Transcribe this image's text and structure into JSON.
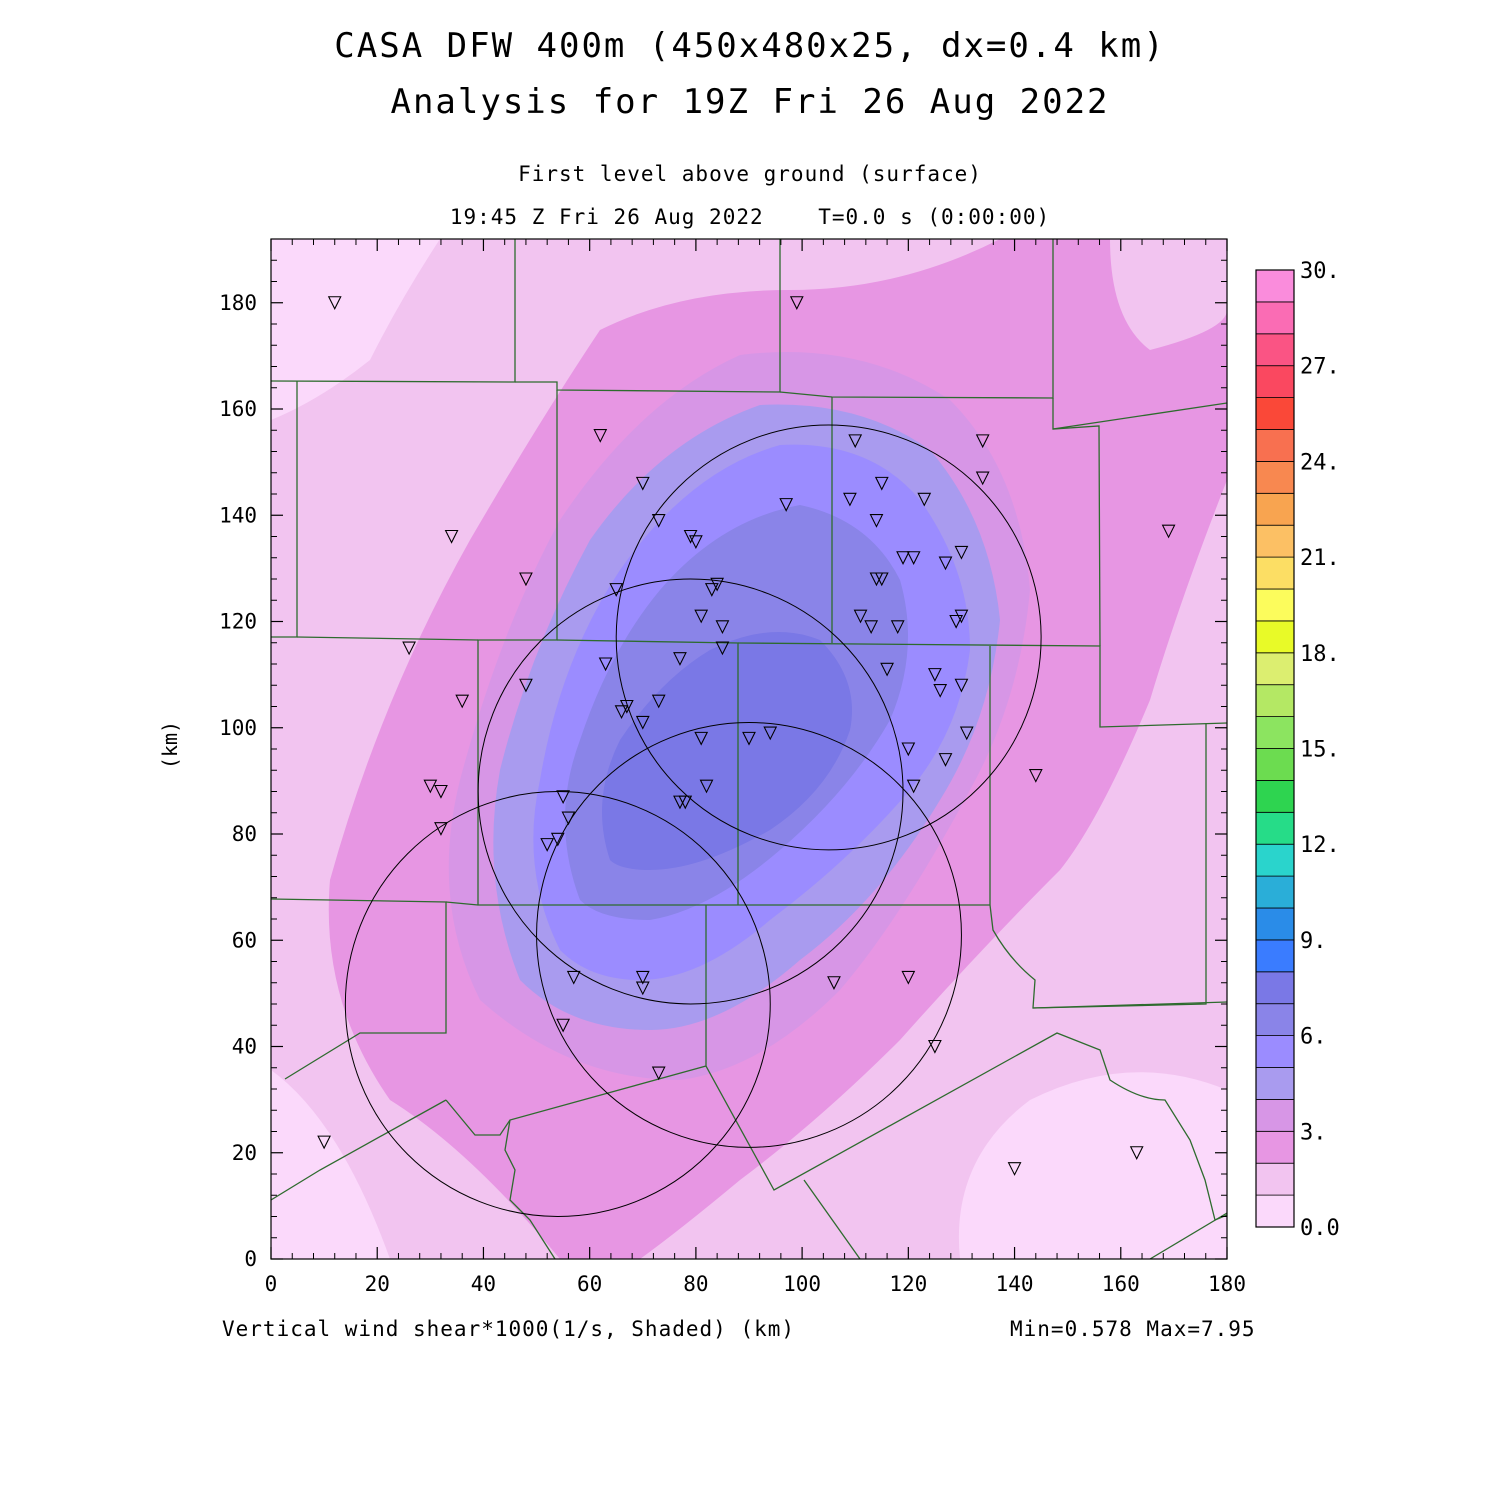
{
  "header": {
    "title_line1": "CASA DFW 400m (450x480x25, dx=0.4 km)",
    "title_line2": "Analysis for 19Z Fri 26 Aug 2022",
    "level": "First level above ground (surface)",
    "time": "19:45 Z Fri 26 Aug 2022    T=0.0 s (0:00:00)"
  },
  "footer": {
    "field_label": "Vertical wind shear*1000(1/s, Shaded)",
    "units": "(km)",
    "minmax": "Min=0.578 Max=7.95"
  },
  "axes": {
    "x_ticks": [
      "0",
      "20",
      "40",
      "60",
      "80",
      "100",
      "120",
      "140",
      "160",
      "180"
    ],
    "y_ticks": [
      "0",
      "20",
      "40",
      "60",
      "80",
      "100",
      "120",
      "140",
      "160",
      "180"
    ],
    "y_label": "(km)",
    "x_range": [
      0,
      180
    ],
    "y_range": [
      0,
      192
    ]
  },
  "colorbar": {
    "labels": [
      "0.0",
      "3.",
      "6.",
      "9.",
      "12.",
      "15.",
      "18.",
      "21.",
      "24.",
      "27.",
      "30."
    ],
    "colors": [
      "#fbd9fb",
      "#f2c4f0",
      "#e796e3",
      "#d796e6",
      "#a99bef",
      "#9b8cff",
      "#8a84e8",
      "#7a78e6",
      "#3a7cff",
      "#2a8ce8",
      "#2aaed8",
      "#2ad4cc",
      "#26dc88",
      "#2ed450",
      "#6cdc50",
      "#8ce460",
      "#b4e864",
      "#dcee70",
      "#e8fa28",
      "#fcfc5c",
      "#fcde64",
      "#fcc064",
      "#f8a450",
      "#f88850",
      "#f87050",
      "#fa4838",
      "#fa4860",
      "#fa5484",
      "#fa6cb4",
      "#fa8cdc"
    ]
  },
  "chart_data": {
    "type": "map",
    "field": "Vertical wind shear*1000 (1/s)",
    "min": 0.578,
    "max": 7.95,
    "radar_rings": [
      {
        "center_x": 105,
        "center_y": 117,
        "radius_km": 40
      },
      {
        "center_x": 79,
        "center_y": 88,
        "radius_km": 40
      },
      {
        "center_x": 90,
        "center_y": 61,
        "radius_km": 40
      },
      {
        "center_x": 54,
        "center_y": 48,
        "radius_km": 40
      }
    ],
    "stations": [
      [
        12,
        180
      ],
      [
        99,
        180
      ],
      [
        62,
        155
      ],
      [
        110,
        154
      ],
      [
        134,
        154
      ],
      [
        70,
        146
      ],
      [
        115,
        146
      ],
      [
        134,
        147
      ],
      [
        97,
        142
      ],
      [
        109,
        143
      ],
      [
        123,
        143
      ],
      [
        34,
        136
      ],
      [
        73,
        139
      ],
      [
        114,
        139
      ],
      [
        79,
        136
      ],
      [
        80,
        135
      ],
      [
        169,
        137
      ],
      [
        119,
        132
      ],
      [
        121,
        132
      ],
      [
        127,
        131
      ],
      [
        130,
        133
      ],
      [
        48,
        128
      ],
      [
        65,
        126
      ],
      [
        84,
        127
      ],
      [
        83,
        126
      ],
      [
        114,
        128
      ],
      [
        115,
        128
      ],
      [
        81,
        121
      ],
      [
        111,
        121
      ],
      [
        118,
        119
      ],
      [
        113,
        119
      ],
      [
        85,
        119
      ],
      [
        129,
        120
      ],
      [
        130,
        121
      ],
      [
        26,
        115
      ],
      [
        85,
        115
      ],
      [
        63,
        112
      ],
      [
        77,
        113
      ],
      [
        116,
        111
      ],
      [
        125,
        110
      ],
      [
        36,
        105
      ],
      [
        48,
        108
      ],
      [
        66,
        103
      ],
      [
        67,
        104
      ],
      [
        73,
        105
      ],
      [
        70,
        101
      ],
      [
        126,
        107
      ],
      [
        130,
        108
      ],
      [
        90,
        98
      ],
      [
        94,
        99
      ],
      [
        81,
        98
      ],
      [
        120,
        96
      ],
      [
        131,
        99
      ],
      [
        127,
        94
      ],
      [
        30,
        89
      ],
      [
        32,
        88
      ],
      [
        82,
        89
      ],
      [
        77,
        86
      ],
      [
        78,
        86
      ],
      [
        121,
        89
      ],
      [
        144,
        91
      ],
      [
        55,
        87
      ],
      [
        56,
        83
      ],
      [
        32,
        81
      ],
      [
        54,
        79
      ],
      [
        52,
        78
      ],
      [
        57,
        53
      ],
      [
        70,
        53
      ],
      [
        70,
        51
      ],
      [
        106,
        52
      ],
      [
        120,
        53
      ],
      [
        55,
        44
      ],
      [
        125,
        40
      ],
      [
        73,
        35
      ],
      [
        10,
        22
      ],
      [
        163,
        20
      ],
      [
        140,
        17
      ]
    ]
  }
}
